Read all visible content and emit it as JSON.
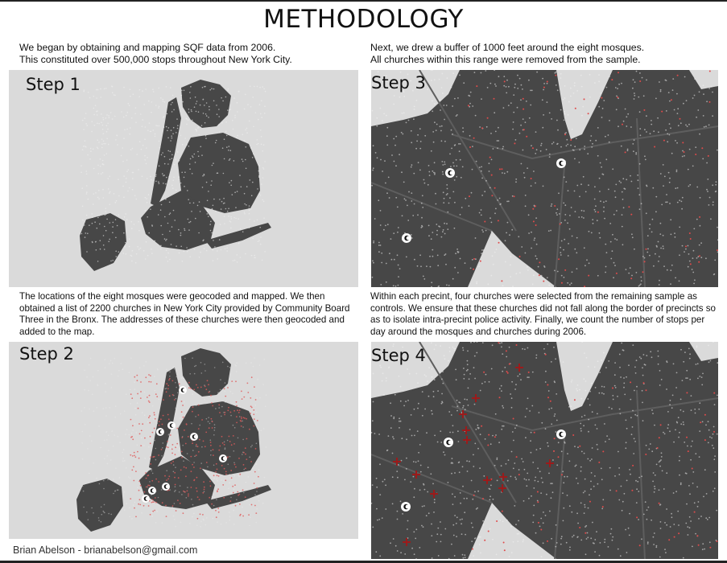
{
  "title": "METHODOLOGY",
  "step1": {
    "label": "Step 1",
    "text": [
      "We began by obtaining and mapping SQF data from 2006.",
      "This constituted over 500,000 stops throughout New York City."
    ]
  },
  "step2": {
    "label": "Step 2",
    "text": "The locations of the eight mosques were geocoded and mapped.  We then obtained a list of 2200 churches in New York City provided by Community Board Three in the Bronx.  The addresses of these churches were then geocoded and added to the map."
  },
  "step3": {
    "label": "Step 3",
    "text": [
      "Next, we drew a buffer of 1000 feet around the eight mosques.",
      "All churches within this range were removed from the sample."
    ]
  },
  "step4": {
    "label": "Step 4",
    "text": "Within each precint, four churches were selected from the remaining sample as controls.  We ensure that these churches did not fall along the border of  precincts so as to isolate intra-precint police activity.  Finally, we count the number of  stops per day around the mosques and churches during 2006."
  },
  "footer": "Brian Abelson - brianabelson@gmail.com",
  "colors": {
    "map": "#474747",
    "water": "#dadada",
    "stops": "#f0f0f0",
    "church": "#e04a4a",
    "selected": "#9b1b1b"
  },
  "icons": [
    "mosque-marker-icon",
    "church-cross-icon"
  ]
}
